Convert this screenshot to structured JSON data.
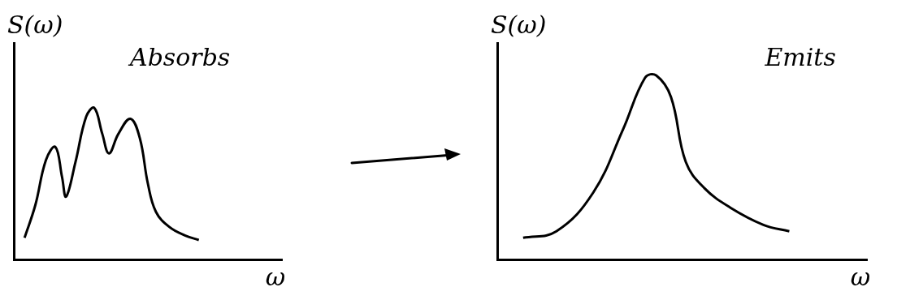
{
  "chart_data": [
    {
      "type": "line",
      "title": "Absorbs",
      "x_label": "ω",
      "y_label": "S(ω)",
      "x": [
        0.4,
        0.8,
        1.2,
        1.55,
        1.8,
        1.95,
        2.3,
        2.7,
        3.0,
        3.3,
        3.55,
        3.9,
        4.35,
        4.7,
        5.0,
        5.3,
        5.8,
        6.4,
        6.9
      ],
      "values": [
        1.0,
        2.5,
        4.6,
        5.2,
        3.8,
        2.9,
        4.5,
        6.6,
        7.0,
        5.8,
        4.9,
        5.8,
        6.5,
        5.6,
        3.5,
        2.2,
        1.5,
        1.1,
        0.9
      ],
      "xlim": [
        0,
        10
      ],
      "ylim": [
        0,
        10
      ],
      "tick_labels": false,
      "grid": false,
      "color": "#000000"
    },
    {
      "type": "line",
      "title": "Emits",
      "x_label": "ω",
      "y_label": "S(ω)",
      "x": [
        0.7,
        1.6,
        2.6,
        3.4,
        4.0,
        4.3,
        4.7,
        5.1,
        5.6,
        6.3,
        7.2,
        7.9
      ],
      "values": [
        1.0,
        1.3,
        3.1,
        6.0,
        8.4,
        8.5,
        7.5,
        4.5,
        3.3,
        2.4,
        1.6,
        1.3
      ],
      "xlim": [
        0,
        10
      ],
      "ylim": [
        0,
        10
      ],
      "tick_labels": false,
      "grid": false,
      "color": "#000000"
    }
  ]
}
